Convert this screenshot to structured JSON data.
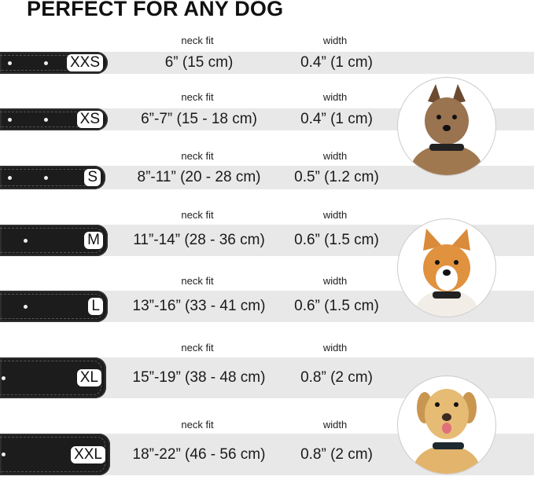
{
  "title": "PERFECT FOR ANY DOG",
  "rows": [
    {
      "size": "XXS",
      "neck_label": "neck fit",
      "neck": "6” (15 cm)",
      "width_label": "width",
      "width": "0.4” (1 cm)"
    },
    {
      "size": "XS",
      "neck_label": "neck fit",
      "neck": "6”-7” (15 - 18 cm)",
      "width_label": "width",
      "width": "0.4” (1 cm)"
    },
    {
      "size": "S",
      "neck_label": "neck fit",
      "neck": "8”-11” (20 - 28 cm)",
      "width_label": "width",
      "width": "0.5” (1.2 cm)"
    },
    {
      "size": "M",
      "neck_label": "neck fit",
      "neck": "11”-14” (28 - 36 cm)",
      "width_label": "width",
      "width": "0.6” (1.5 cm)"
    },
    {
      "size": "L",
      "neck_label": "neck fit",
      "neck": "13”-16” (33 - 41 cm)",
      "width_label": "width",
      "width": "0.6” (1.5 cm)"
    },
    {
      "size": "XL",
      "neck_label": "neck fit",
      "neck": "15”-19” (38 - 48 cm)",
      "width_label": "width",
      "width": "0.8” (2 cm)"
    },
    {
      "size": "XXL",
      "neck_label": "neck fit",
      "neck": "18”-22” (46 - 56 cm)",
      "width_label": "width",
      "width": "0.8” (2 cm)"
    }
  ],
  "colors": {
    "band": "#e8e8e8",
    "collar": "#1c1c1c"
  },
  "images": [
    "small-terrier-photo",
    "corgi-photo",
    "labrador-photo"
  ]
}
